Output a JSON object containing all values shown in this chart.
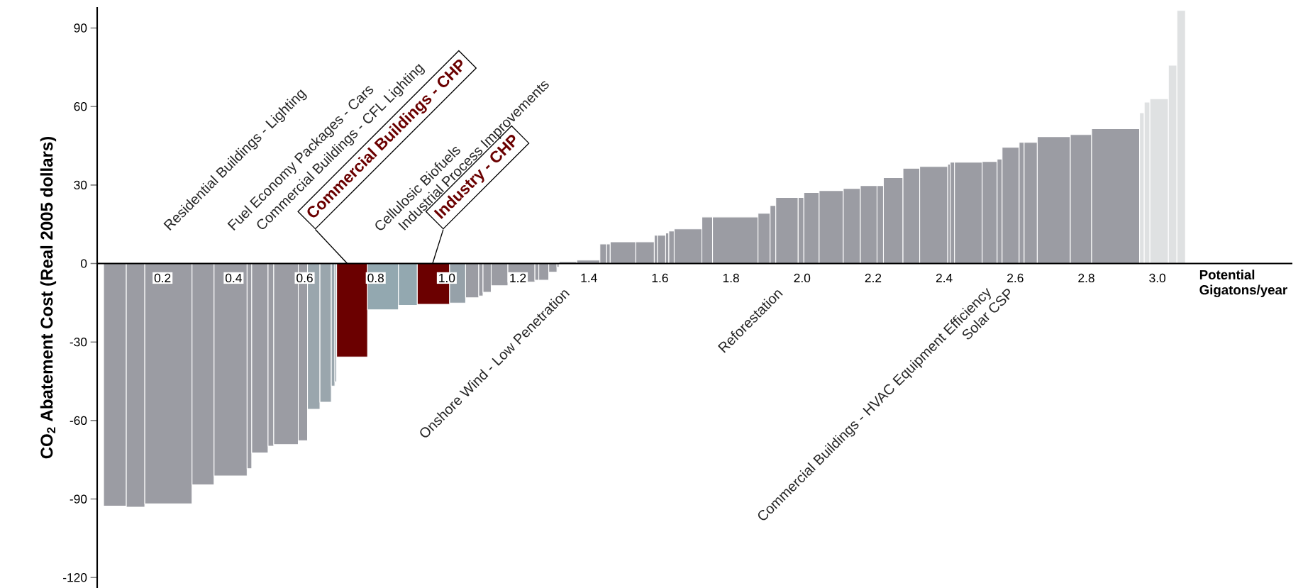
{
  "chart_data": {
    "type": "histogram",
    "ylabel": "CO$_{2}$ Abatement Cost (Real 2005 dollars)",
    "xlabel": "Potential Gigatons/year",
    "bins": [
      0.034,
      0.098,
      0.15,
      0.283,
      0.345,
      0.438,
      0.451,
      0.497,
      0.513,
      0.582,
      0.608,
      0.643,
      0.675,
      0.685,
      0.69,
      0.777,
      0.864,
      0.917,
      1.008,
      1.053,
      1.09,
      1.102,
      1.125,
      1.172,
      1.248,
      1.259,
      1.287,
      1.31,
      1.316,
      1.366,
      1.431,
      1.45,
      1.46,
      1.532,
      1.584,
      1.593,
      1.616,
      1.625,
      1.64,
      1.718,
      1.748,
      1.876,
      1.91,
      1.926,
      1.989,
      2.005,
      2.048,
      2.116,
      2.164,
      2.211,
      2.229,
      2.284,
      2.331,
      2.41,
      2.417,
      2.429,
      2.507,
      2.549,
      2.563,
      2.611,
      2.625,
      2.662,
      2.755,
      2.815,
      2.95,
      2.963,
      2.979,
      3.031,
      3.055,
      3.079
    ],
    "values": [
      -92.7,
      -93.1,
      -91.8,
      -84.6,
      -81.2,
      -78.4,
      -72.4,
      -69.8,
      -69.2,
      -67.7,
      -55.7,
      -53.0,
      -46.8,
      -45.2,
      -35.7,
      -17.7,
      -16.0,
      -15.6,
      -15.1,
      -13.1,
      -12.4,
      -11.0,
      -8.5,
      -7.1,
      -6.4,
      -6.4,
      -3.3,
      -1.4,
      0.7,
      1.3,
      7.5,
      7.5,
      8.3,
      8.3,
      10.8,
      10.8,
      11.7,
      12.4,
      13.2,
      17.8,
      17.8,
      19.2,
      22.2,
      25.2,
      25.2,
      27.1,
      27.9,
      28.7,
      29.8,
      29.8,
      32.8,
      36.4,
      37.1,
      38.0,
      38.7,
      38.7,
      39.0,
      39.9,
      44.4,
      46.3,
      46.3,
      48.5,
      49.3,
      51.5,
      57.6,
      61.7,
      63.0,
      75.8,
      96.7
    ],
    "colors": [
      "#9b9ca3",
      "#9b9ca3",
      "#9b9ca3",
      "#9b9ca3",
      "#9b9ca3",
      "#9b9ca3",
      "#9b9ca3",
      "#9b9ca3",
      "#9b9ca3",
      "#9b9ca3",
      "#9aa6ad",
      "#9aa6ad",
      "#9aa6ad",
      "#9aa6ad",
      "#6b0000",
      "#93a8b0",
      "#93a8b0",
      "#6b0000",
      "#96a1a9",
      "#9b9ca3",
      "#9b9ca3",
      "#9b9ca3",
      "#9b9ca3",
      "#9b9ca3",
      "#9b9ca3",
      "#9b9ca3",
      "#9b9ca3",
      "#9b9ca3",
      "#9b9ca3",
      "#9b9ca3",
      "#9b9ca3",
      "#9b9ca3",
      "#9b9ca3",
      "#9b9ca3",
      "#9b9ca3",
      "#9b9ca3",
      "#9b9ca3",
      "#9b9ca3",
      "#9b9ca3",
      "#9b9ca3",
      "#9b9ca3",
      "#9b9ca3",
      "#9b9ca3",
      "#9b9ca3",
      "#9b9ca3",
      "#9b9ca3",
      "#9b9ca3",
      "#9b9ca3",
      "#9b9ca3",
      "#9b9ca3",
      "#9b9ca3",
      "#9b9ca3",
      "#9b9ca3",
      "#9b9ca3",
      "#9b9ca3",
      "#9b9ca3",
      "#9b9ca3",
      "#9b9ca3",
      "#9b9ca3",
      "#9b9ca3",
      "#9b9ca3",
      "#9b9ca3",
      "#9b9ca3",
      "#9b9ca3",
      "#dfe1e2",
      "#dfe1e2",
      "#dfe1e2",
      "#dfe1e2",
      "#dfe1e2"
    ],
    "xlim": [
      0.016,
      3.38
    ],
    "ylim": [
      -124,
      98
    ],
    "xticks": [
      0.2,
      0.4,
      0.6,
      0.8,
      {
        "value": 1,
        "label": "1.0"
      },
      1.2,
      1.4,
      1.6,
      1.8,
      {
        "value": 2,
        "label": "2.0"
      },
      2.2,
      2.4,
      2.6,
      2.8,
      {
        "value": 3,
        "label": "3.0"
      }
    ],
    "yticks": [
      -120,
      -90,
      -60,
      -30,
      0,
      30,
      60,
      90
    ],
    "annotations": [
      "Residential Buildings - Lighting",
      "Fuel Economy Packages - Cars",
      "Commercial Buildings - CFL Lighting",
      {
        "text": "Commercial Buildings - CHP",
        "x": 0.72,
        "y": 0
      },
      "Cellulosic Biofuels",
      "Industrial Process Improvements",
      {
        "text": "Industry - CHP",
        "x": 0.96,
        "y": 0
      },
      "Onshore Wind - Low Penetration",
      "Reforestation",
      "Commercial Buildings - HVAC Equipment Efficiency",
      "Solar CSP"
    ]
  }
}
